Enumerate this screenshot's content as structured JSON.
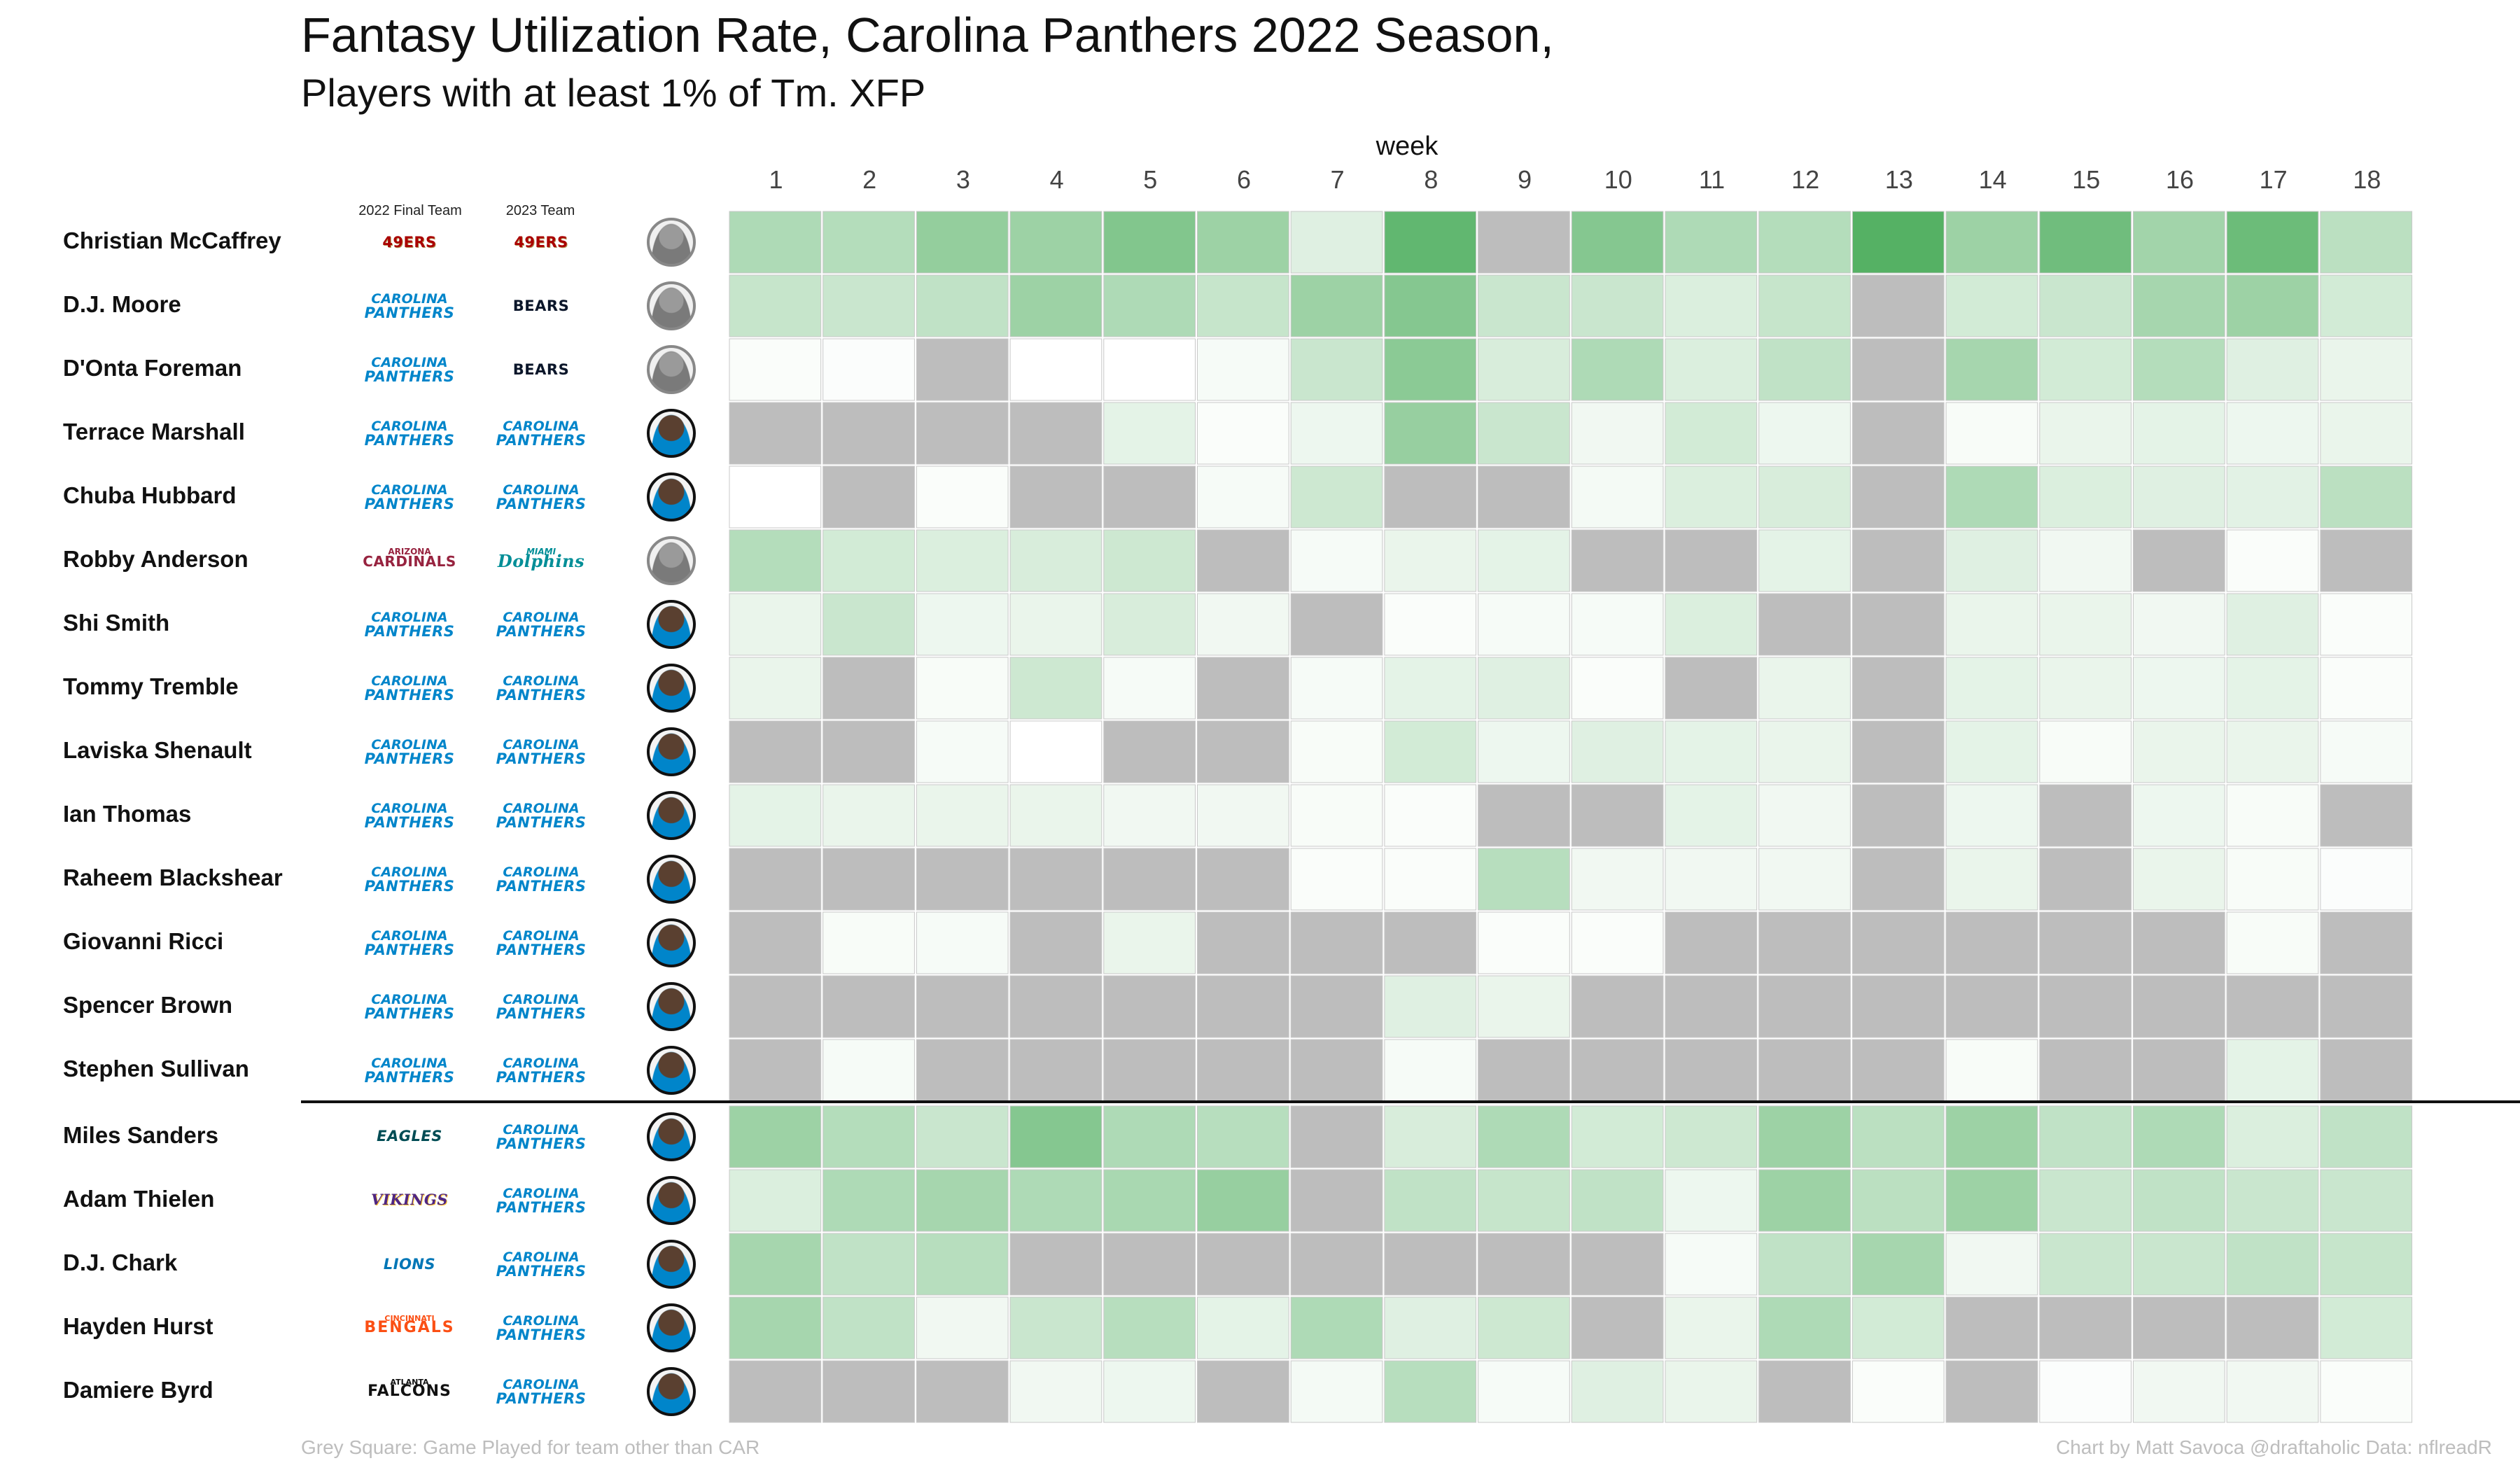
{
  "title": "Fantasy Utilization Rate, Carolina Panthers 2022 Season,",
  "subtitle": "Players with at least 1% of Tm. XFP",
  "column_headers": {
    "team_2022": "2022 Final Team",
    "team_2023": "2023 Team"
  },
  "footer": {
    "note": "Grey Square: Game Played for team other than CAR",
    "credit": "Chart by Matt Savoca    @draftaholic    Data: nflreadR"
  },
  "colors": {
    "grey_other_team": "#bdbdbd",
    "scale_low": "#ffffff",
    "scale_high": "#4cad5c",
    "divider": "#111111"
  },
  "teams": {
    "niners": {
      "lines": [
        "49ERS"
      ]
    },
    "panthers": {
      "lines": [
        "CAROLINA",
        "PANTHERS"
      ]
    },
    "bears": {
      "lines": [
        "BEARS"
      ]
    },
    "cardinals": {
      "lines": [
        "ARIZONA",
        "CARDINALS"
      ]
    },
    "dolphins": {
      "lines": [
        "MIAMI",
        "Dolphins"
      ]
    },
    "eagles": {
      "lines": [
        "EAGLES"
      ]
    },
    "vikings": {
      "lines": [
        "VIKINGS"
      ]
    },
    "lions": {
      "lines": [
        "LIONS"
      ]
    },
    "bengals": {
      "lines": [
        "CINCINNATI",
        "BENGALS"
      ]
    },
    "falcons": {
      "lines": [
        "ATLANTA",
        "FALCONS"
      ]
    }
  },
  "chart_data": {
    "type": "heatmap",
    "xlabel": "week",
    "x": [
      1,
      2,
      3,
      4,
      5,
      6,
      7,
      8,
      9,
      10,
      11,
      12,
      13,
      14,
      15,
      16,
      17,
      18
    ],
    "note": "null = grey square (game played for team other than CAR); values are relative utilization intensity 0-1",
    "rows": [
      {
        "player": "Christian McCaffrey",
        "team_2022": "niners",
        "team_2023": "niners",
        "headshot": "silhouette",
        "values": [
          0.45,
          0.42,
          0.6,
          0.55,
          0.7,
          0.55,
          0.18,
          0.88,
          null,
          0.68,
          0.45,
          0.42,
          0.95,
          0.55,
          0.8,
          0.52,
          0.82,
          0.38
        ]
      },
      {
        "player": "D.J. Moore",
        "team_2022": "panthers",
        "team_2023": "bears",
        "headshot": "silhouette",
        "values": [
          0.32,
          0.3,
          0.35,
          0.55,
          0.45,
          0.32,
          0.55,
          0.68,
          0.3,
          0.3,
          0.2,
          0.32,
          null,
          0.25,
          0.3,
          0.5,
          0.55,
          0.25
        ]
      },
      {
        "player": "D'Onta Foreman",
        "team_2022": "panthers",
        "team_2023": "bears",
        "headshot": "silhouette",
        "values": [
          0.03,
          0.02,
          null,
          0.0,
          0.0,
          0.05,
          0.3,
          0.65,
          0.22,
          0.45,
          0.2,
          0.35,
          null,
          0.5,
          0.25,
          0.42,
          0.18,
          0.12
        ]
      },
      {
        "player": "Terrace Marshall",
        "team_2022": "panthers",
        "team_2023": "panthers",
        "headshot": "photo",
        "values": [
          null,
          null,
          null,
          null,
          0.15,
          0.03,
          0.1,
          0.58,
          0.3,
          0.08,
          0.25,
          0.1,
          null,
          0.04,
          0.12,
          0.15,
          0.1,
          0.12
        ]
      },
      {
        "player": "Chuba Hubbard",
        "team_2022": "panthers",
        "team_2023": "panthers",
        "headshot": "photo",
        "values": [
          0.0,
          null,
          0.03,
          null,
          null,
          0.05,
          0.28,
          null,
          null,
          0.06,
          0.2,
          0.22,
          null,
          0.45,
          0.2,
          0.18,
          0.16,
          0.38
        ]
      },
      {
        "player": "Robby Anderson",
        "team_2022": "cardinals",
        "team_2023": "dolphins",
        "headshot": "silhouette",
        "values": [
          0.42,
          0.25,
          0.2,
          0.22,
          0.28,
          null,
          0.05,
          0.12,
          0.15,
          null,
          null,
          0.15,
          null,
          0.18,
          0.08,
          null,
          0.03,
          null
        ]
      },
      {
        "player": "Shi Smith",
        "team_2022": "panthers",
        "team_2023": "panthers",
        "headshot": "photo",
        "values": [
          0.12,
          0.3,
          0.1,
          0.12,
          0.22,
          0.08,
          null,
          0.03,
          0.05,
          0.05,
          0.2,
          null,
          null,
          0.12,
          0.12,
          0.08,
          0.18,
          0.03
        ]
      },
      {
        "player": "Tommy Tremble",
        "team_2022": "panthers",
        "team_2023": "panthers",
        "headshot": "photo",
        "values": [
          0.12,
          null,
          0.04,
          0.28,
          0.05,
          null,
          0.05,
          0.15,
          0.18,
          0.03,
          null,
          0.12,
          null,
          0.15,
          0.12,
          0.1,
          0.15,
          0.03
        ]
      },
      {
        "player": "Laviska Shenault",
        "team_2022": "panthers",
        "team_2023": "panthers",
        "headshot": "photo",
        "values": [
          null,
          null,
          0.05,
          0.0,
          null,
          null,
          0.04,
          0.25,
          0.1,
          0.18,
          0.15,
          0.12,
          null,
          0.15,
          0.04,
          0.12,
          0.12,
          0.05
        ]
      },
      {
        "player": "Ian Thomas",
        "team_2022": "panthers",
        "team_2023": "panthers",
        "headshot": "photo",
        "values": [
          0.15,
          0.12,
          0.12,
          0.12,
          0.08,
          0.08,
          0.04,
          0.03,
          null,
          null,
          0.15,
          0.08,
          null,
          0.1,
          null,
          0.1,
          0.04,
          null
        ]
      },
      {
        "player": "Raheem Blackshear",
        "team_2022": "panthers",
        "team_2023": "panthers",
        "headshot": "photo",
        "values": [
          null,
          null,
          null,
          null,
          null,
          null,
          0.03,
          0.03,
          0.4,
          0.08,
          0.08,
          0.08,
          null,
          0.12,
          null,
          0.12,
          0.04,
          0.02
        ]
      },
      {
        "player": "Giovanni Ricci",
        "team_2022": "panthers",
        "team_2023": "panthers",
        "headshot": "photo",
        "values": [
          null,
          0.04,
          0.05,
          null,
          0.12,
          null,
          null,
          null,
          0.03,
          0.03,
          null,
          null,
          null,
          null,
          null,
          null,
          0.04,
          null
        ]
      },
      {
        "player": "Spencer Brown",
        "team_2022": "panthers",
        "team_2023": "panthers",
        "headshot": "photo",
        "values": [
          null,
          null,
          null,
          null,
          null,
          null,
          null,
          0.18,
          0.12,
          null,
          null,
          null,
          null,
          null,
          null,
          null,
          null,
          null
        ]
      },
      {
        "player": "Stephen Sullivan",
        "team_2022": "panthers",
        "team_2023": "panthers",
        "headshot": "photo",
        "values": [
          null,
          0.05,
          null,
          null,
          null,
          null,
          null,
          0.05,
          null,
          null,
          null,
          null,
          null,
          0.04,
          null,
          null,
          0.15,
          null
        ]
      },
      {
        "player": "Miles Sanders",
        "team_2022": "eagles",
        "team_2023": "panthers",
        "headshot": "photo",
        "values": [
          0.55,
          0.42,
          0.3,
          0.68,
          0.45,
          0.4,
          null,
          0.22,
          0.45,
          0.25,
          0.28,
          0.55,
          0.38,
          0.55,
          0.35,
          0.45,
          0.2,
          0.35
        ]
      },
      {
        "player": "Adam Thielen",
        "team_2022": "vikings",
        "team_2023": "panthers",
        "headshot": "photo",
        "values": [
          0.2,
          0.45,
          0.5,
          0.45,
          0.48,
          0.58,
          null,
          0.35,
          0.32,
          0.35,
          0.1,
          0.55,
          0.38,
          0.55,
          0.3,
          0.35,
          0.3,
          0.3
        ]
      },
      {
        "player": "D.J. Chark",
        "team_2022": "lions",
        "team_2023": "panthers",
        "headshot": "photo",
        "values": [
          0.5,
          0.35,
          0.4,
          null,
          null,
          null,
          null,
          null,
          null,
          null,
          0.05,
          0.35,
          0.5,
          0.08,
          0.3,
          0.3,
          0.35,
          0.32
        ]
      },
      {
        "player": "Hayden Hurst",
        "team_2022": "bengals",
        "team_2023": "panthers",
        "headshot": "photo",
        "values": [
          0.5,
          0.35,
          0.08,
          0.3,
          0.4,
          0.15,
          0.45,
          0.18,
          0.28,
          null,
          0.12,
          0.45,
          0.25,
          null,
          null,
          null,
          null,
          0.25
        ]
      },
      {
        "player": "Damiere Byrd",
        "team_2022": "falcons",
        "team_2023": "panthers",
        "headshot": "photo",
        "values": [
          null,
          null,
          null,
          0.08,
          0.1,
          null,
          0.06,
          0.4,
          0.05,
          0.18,
          0.12,
          null,
          0.03,
          null,
          0.02,
          0.08,
          0.08,
          0.03
        ]
      }
    ]
  }
}
